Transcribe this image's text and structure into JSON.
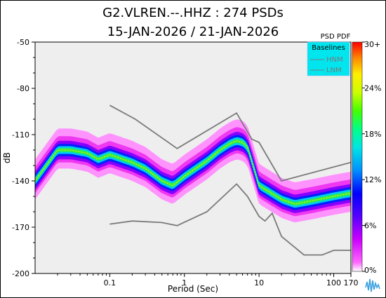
{
  "title_line1": "G2.VLREN.--.HHZ : 274 PSDs",
  "title_line2": "15-JAN-2026 / 21-JAN-2026",
  "colorbar_title": "PSD PDF",
  "colorbar_ticks": [
    "30+",
    "24%",
    "18%",
    "12%",
    "6%",
    "0%"
  ],
  "legend": {
    "title": "Baselines",
    "items": [
      "HNM",
      "LNM"
    ]
  },
  "colors": {
    "plot_bg": "#eeeeee",
    "baseline": "#7a7a7a",
    "legend_bg": "#00e5ee"
  },
  "chart_data": {
    "type": "heatmap",
    "title": "G2.VLREN.--.HHZ : 274 PSDs",
    "subtitle": "15-JAN-2026 / 21-JAN-2026",
    "xlabel": "Period (Sec)",
    "ylabel": "dB",
    "x_scale": "log",
    "xlim": [
      0.01,
      170
    ],
    "ylim": [
      -200,
      -50
    ],
    "x_ticks": [
      "0.1",
      "1",
      "10",
      "100",
      "170"
    ],
    "y_ticks": [
      "-50",
      "-80",
      "-110",
      "-140",
      "-170",
      "-200"
    ],
    "legend_position": "top-right",
    "colorbar_label": "PSD PDF",
    "colorbar_ticks": [
      "30+",
      "24%",
      "18%",
      "12%",
      "6%",
      "0%"
    ],
    "mode_curve": [
      [
        0.01,
        -140
      ],
      [
        0.02,
        -120
      ],
      [
        0.03,
        -120
      ],
      [
        0.05,
        -122
      ],
      [
        0.07,
        -126
      ],
      [
        0.1,
        -123
      ],
      [
        0.2,
        -128
      ],
      [
        0.3,
        -132
      ],
      [
        0.5,
        -140
      ],
      [
        0.7,
        -143
      ],
      [
        1,
        -137
      ],
      [
        2,
        -127
      ],
      [
        3,
        -120
      ],
      [
        4,
        -116
      ],
      [
        5,
        -114
      ],
      [
        6,
        -115
      ],
      [
        7,
        -118
      ],
      [
        10,
        -143
      ],
      [
        20,
        -152
      ],
      [
        30,
        -155
      ],
      [
        50,
        -153
      ],
      [
        100,
        -150
      ],
      [
        170,
        -148
      ]
    ],
    "series": [
      {
        "name": "HNM",
        "points": [
          [
            0.1,
            -91
          ],
          [
            0.22,
            -100
          ],
          [
            0.8,
            -119
          ],
          [
            5,
            -96
          ],
          [
            8,
            -113
          ],
          [
            10,
            -115
          ],
          [
            20,
            -140
          ],
          [
            170,
            -128
          ]
        ]
      },
      {
        "name": "LNM",
        "points": [
          [
            0.1,
            -168
          ],
          [
            0.2,
            -166
          ],
          [
            0.5,
            -167
          ],
          [
            0.8,
            -169
          ],
          [
            2,
            -160
          ],
          [
            5,
            -142
          ],
          [
            7,
            -150
          ],
          [
            10,
            -163
          ],
          [
            12,
            -166
          ],
          [
            15,
            -161
          ],
          [
            20,
            -176
          ],
          [
            40,
            -188
          ],
          [
            70,
            -188
          ],
          [
            100,
            -185
          ],
          [
            170,
            -185
          ]
        ]
      }
    ]
  }
}
